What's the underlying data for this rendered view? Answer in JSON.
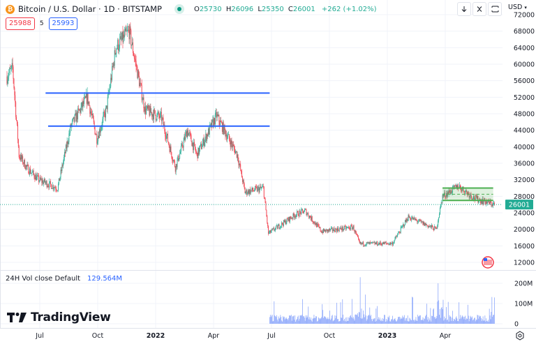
{
  "header": {
    "symbol_title": "Bitcoin / U.S. Dollar · 1D · BITSTAMP",
    "coin_icon": "bitcoin-icon",
    "status": "market-open-dot",
    "ohlc": {
      "o_label": "O",
      "o": "25730",
      "h_label": "H",
      "h": "26096",
      "l_label": "L",
      "l": "25350",
      "c_label": "C",
      "c": "26001",
      "change": "+262 (+1.02%)"
    },
    "sell_price": "25988",
    "spread": "5",
    "buy_price": "25993",
    "toolbar": {
      "buttons": [
        "arrow-down-icon",
        "collapse-icon",
        "fullscreen-icon"
      ],
      "currency": "USD"
    }
  },
  "volume_legend": {
    "label": "24H Vol close Default",
    "value": "129.564M"
  },
  "branding": {
    "logo_text": "TradingView"
  },
  "colors": {
    "up": "#22ab94",
    "down": "#f23645",
    "hline": "#2962ff",
    "box": "#4caf50",
    "volume": "#8fa9fb",
    "last_price": "#22ab94"
  },
  "chart_data": {
    "type": "candlestick",
    "title": "Bitcoin / U.S. Dollar · 1D · BITSTAMP",
    "xlabel": "",
    "ylabel": "USD",
    "ylim": [
      10000,
      72000
    ],
    "y_ticks": [
      72000,
      68000,
      64000,
      60000,
      56000,
      52000,
      48000,
      44000,
      40000,
      36000,
      32000,
      28000,
      24000,
      20000,
      16000,
      12000
    ],
    "x_ticks": [
      "Jul",
      "Oct",
      "2022",
      "Apr",
      "Jul",
      "Oct",
      "2023",
      "Apr"
    ],
    "grid": true,
    "last_price": 26001,
    "price_path_keypoints": [
      {
        "date": "2021-05",
        "price": 57000
      },
      {
        "date": "2021-05-10",
        "price": 59000
      },
      {
        "date": "2021-05-20",
        "price": 38000
      },
      {
        "date": "2021-06",
        "price": 35000
      },
      {
        "date": "2021-06-20",
        "price": 32000
      },
      {
        "date": "2021-07-20",
        "price": 30000
      },
      {
        "date": "2021-08-10",
        "price": 45000
      },
      {
        "date": "2021-09-05",
        "price": 52000
      },
      {
        "date": "2021-09-20",
        "price": 42000
      },
      {
        "date": "2021-10-05",
        "price": 49000
      },
      {
        "date": "2021-10-20",
        "price": 64000
      },
      {
        "date": "2021-11-10",
        "price": 68000
      },
      {
        "date": "2021-12-05",
        "price": 49000
      },
      {
        "date": "2021-12-31",
        "price": 47000
      },
      {
        "date": "2022-01-22",
        "price": 35000
      },
      {
        "date": "2022-02-10",
        "price": 44000
      },
      {
        "date": "2022-02-25",
        "price": 38000
      },
      {
        "date": "2022-03-28",
        "price": 47500
      },
      {
        "date": "2022-04-30",
        "price": 38000
      },
      {
        "date": "2022-05-12",
        "price": 29000
      },
      {
        "date": "2022-06-10",
        "price": 30000
      },
      {
        "date": "2022-06-18",
        "price": 19000
      },
      {
        "date": "2022-07-30",
        "price": 23500
      },
      {
        "date": "2022-08-15",
        "price": 24500
      },
      {
        "date": "2022-09-10",
        "price": 19500
      },
      {
        "date": "2022-10-30",
        "price": 20500
      },
      {
        "date": "2022-11-09",
        "price": 16500
      },
      {
        "date": "2022-12-31",
        "price": 16600
      },
      {
        "date": "2023-01-25",
        "price": 23000
      },
      {
        "date": "2023-03-10",
        "price": 20000
      },
      {
        "date": "2023-03-20",
        "price": 28000
      },
      {
        "date": "2023-04-14",
        "price": 30500
      },
      {
        "date": "2023-05-10",
        "price": 27500
      },
      {
        "date": "2023-06-10",
        "price": 26001
      }
    ],
    "horizontal_lines": [
      {
        "price": 53000,
        "x_start_date": "2021-07",
        "x_end_date": "2022-06-20",
        "color": "#2962ff"
      },
      {
        "price": 45000,
        "x_start_date": "2021-07-05",
        "x_end_date": "2022-06-20",
        "color": "#2962ff"
      }
    ],
    "range_box": {
      "top": 30000,
      "bottom": 27000,
      "mid": 28500,
      "x_start_date": "2023-03-20",
      "x_end_date": "2023-06-08",
      "color": "#4caf50"
    },
    "volume": {
      "series_name": "24H Vol close Default",
      "last_value": "129.564M",
      "y_ticks": [
        "200M",
        "100M",
        "0"
      ],
      "starts_date": "2022-06-20",
      "peaks": [
        {
          "date": "2022-11-10",
          "value": 230
        },
        {
          "date": "2023-03-13",
          "value": 200
        },
        {
          "date": "2023-06-10",
          "value": 130
        }
      ]
    }
  }
}
